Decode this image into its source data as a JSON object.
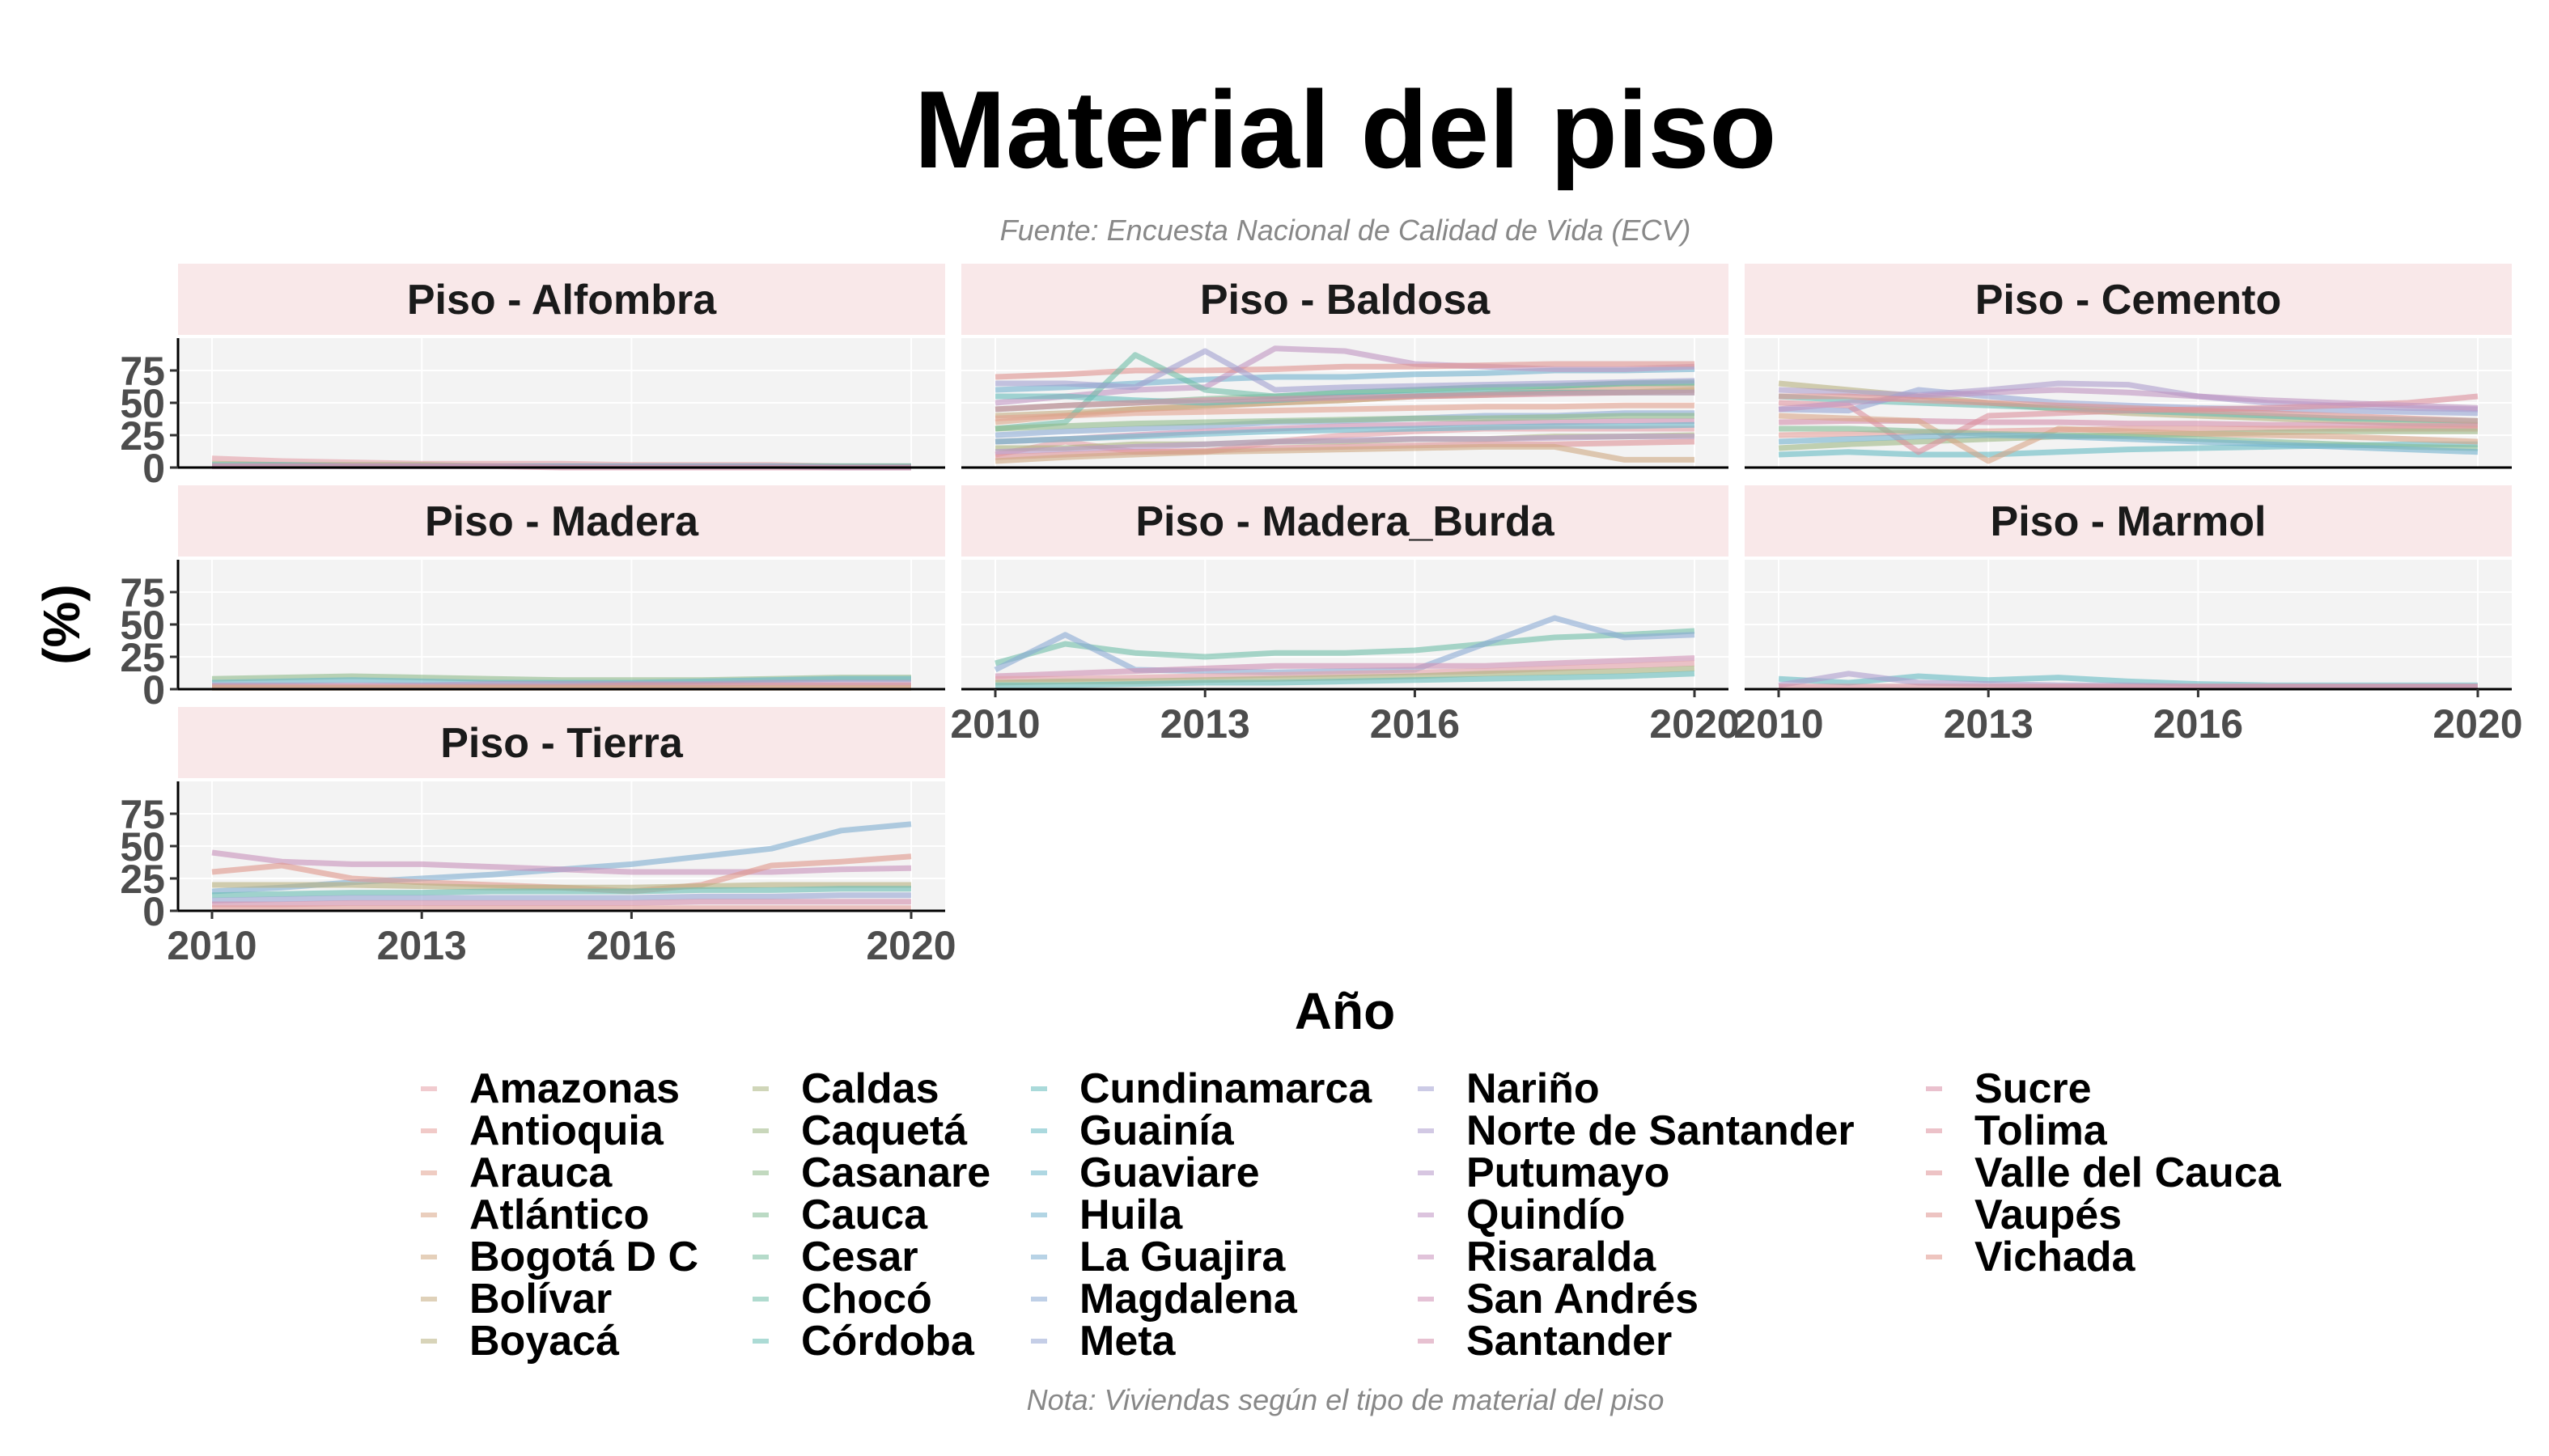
{
  "title": "Material del piso",
  "subtitle": "Fuente: Encuesta Nacional de Calidad de Vida (ECV)",
  "caption": "Nota: Viviendas según el tipo de material del piso",
  "chart_data": {
    "type": "line",
    "title": "Material del piso",
    "xlabel": "Año",
    "ylabel": "(%)",
    "ylim": [
      0,
      100
    ],
    "xlim": [
      2010,
      2020
    ],
    "x_ticks": [
      2010,
      2013,
      2016,
      2020
    ],
    "y_ticks": [
      0,
      25,
      50,
      75
    ],
    "grid": true,
    "legend_position": "bottom",
    "facets": [
      "Piso -  Alfombra",
      "Piso -  Baldosa",
      "Piso -  Cemento",
      "Piso -  Madera",
      "Piso -  Madera_Burda",
      "Piso -  Marmol",
      "Piso -  Tierra"
    ],
    "departments": [
      "Amazonas",
      "Antioquia",
      "Arauca",
      "Atlántico",
      "Bogotá D C",
      "Bolívar",
      "Boyacá",
      "Caldas",
      "Caquetá",
      "Casanare",
      "Cauca",
      "Cesar",
      "Chocó",
      "Córdoba",
      "Cundinamarca",
      "Guainía",
      "Guaviare",
      "Huila",
      "La Guajira",
      "Magdalena",
      "Meta",
      "Nariño",
      "Norte de Santander",
      "Putumayo",
      "Quindío",
      "Risaralda",
      "San Andrés",
      "Santander",
      "Sucre",
      "Tolima",
      "Valle del Cauca",
      "Vaupés",
      "Vichada"
    ],
    "colors": [
      "#e5a0a8",
      "#e59f9a",
      "#e2a28f",
      "#d9a587",
      "#cfa982",
      "#c4ac80",
      "#b8b07f",
      "#aab47f",
      "#9cb783",
      "#8fba8b",
      "#83bc94",
      "#78bd9e",
      "#6fbea8",
      "#68bdb2",
      "#65bcbb",
      "#66bac3",
      "#6bb7ca",
      "#73b3ce",
      "#7eaed1",
      "#8aaad3",
      "#96a5d3",
      "#a2a0d1",
      "#ad9ccd",
      "#b797c8",
      "#c094c2",
      "#c891bb",
      "#cf8fb4",
      "#d48eac",
      "#d88ea5",
      "#dc8f9d",
      "#de9196",
      "#df938f",
      "#e0968a"
    ],
    "series_by_facet": {
      "Piso -  Alfombra": [
        {
          "values": [
            7,
            5,
            4,
            3,
            3,
            3,
            2,
            2,
            2,
            1,
            1
          ]
        },
        {
          "values": [
            3,
            2,
            2,
            2,
            1,
            1,
            1,
            1,
            1,
            1,
            1
          ]
        },
        {
          "values": [
            2,
            2,
            1,
            1,
            1,
            1,
            1,
            1,
            1,
            1,
            1
          ]
        },
        {
          "values": [
            1,
            1,
            1,
            1,
            1,
            1,
            1,
            1,
            1,
            0,
            0
          ]
        },
        {
          "values": [
            1,
            1,
            1,
            1,
            1,
            0,
            0,
            0,
            0,
            0,
            0
          ]
        }
      ],
      "Piso -  Baldosa": [
        {
          "values": [
            35,
            40,
            45,
            47,
            50,
            52,
            55,
            57,
            60,
            62,
            62
          ]
        },
        {
          "values": [
            45,
            48,
            50,
            53,
            55,
            58,
            60,
            62,
            63,
            65,
            65
          ]
        },
        {
          "values": [
            60,
            62,
            65,
            68,
            70,
            70,
            72,
            73,
            75,
            75,
            76
          ]
        },
        {
          "values": [
            50,
            55,
            60,
            62,
            92,
            90,
            80,
            78,
            76,
            76,
            78
          ]
        },
        {
          "values": [
            70,
            72,
            75,
            75,
            76,
            78,
            78,
            79,
            80,
            80,
            80
          ]
        },
        {
          "values": [
            40,
            42,
            45,
            48,
            50,
            52,
            55,
            56,
            58,
            58,
            60
          ]
        },
        {
          "values": [
            30,
            35,
            87,
            60,
            55,
            58,
            60,
            62,
            63,
            65,
            66
          ]
        },
        {
          "values": [
            25,
            28,
            30,
            32,
            35,
            36,
            38,
            40,
            40,
            42,
            42
          ]
        },
        {
          "values": [
            20,
            22,
            25,
            28,
            30,
            32,
            33,
            35,
            35,
            36,
            36
          ]
        },
        {
          "values": [
            10,
            20,
            12,
            12,
            20,
            25,
            28,
            30,
            30,
            30,
            30
          ]
        },
        {
          "values": [
            15,
            15,
            18,
            18,
            20,
            20,
            22,
            22,
            24,
            24,
            25
          ]
        },
        {
          "values": [
            55,
            55,
            52,
            50,
            52,
            55,
            56,
            58,
            58,
            58,
            58
          ]
        },
        {
          "values": [
            65,
            65,
            62,
            90,
            60,
            62,
            63,
            64,
            65,
            66,
            67
          ]
        },
        {
          "values": [
            45,
            48,
            50,
            52,
            53,
            54,
            55,
            56,
            57,
            58,
            58
          ]
        },
        {
          "values": [
            38,
            40,
            42,
            43,
            44,
            45,
            46,
            47,
            47,
            48,
            48
          ]
        },
        {
          "values": [
            30,
            32,
            34,
            35,
            36,
            37,
            38,
            38,
            39,
            40,
            40
          ]
        },
        {
          "values": [
            20,
            22,
            24,
            26,
            28,
            29,
            30,
            31,
            32,
            32,
            33
          ]
        },
        {
          "values": [
            12,
            14,
            16,
            18,
            20,
            21,
            22,
            22,
            23,
            24,
            24
          ]
        },
        {
          "values": [
            8,
            10,
            12,
            13,
            15,
            16,
            17,
            18,
            18,
            19,
            20
          ]
        },
        {
          "values": [
            5,
            8,
            10,
            12,
            13,
            14,
            15,
            16,
            16,
            6,
            6
          ]
        }
      ],
      "Piso -  Cemento": [
        {
          "values": [
            65,
            60,
            55,
            50,
            45,
            42,
            40,
            38,
            36,
            34,
            33
          ]
        },
        {
          "values": [
            55,
            52,
            50,
            48,
            46,
            44,
            42,
            40,
            38,
            37,
            36
          ]
        },
        {
          "values": [
            45,
            44,
            60,
            55,
            50,
            48,
            46,
            45,
            44,
            43,
            42
          ]
        },
        {
          "values": [
            35,
            36,
            36,
            35,
            35,
            34,
            34,
            33,
            33,
            32,
            32
          ]
        },
        {
          "values": [
            25,
            26,
            27,
            28,
            29,
            30,
            30,
            30,
            30,
            30,
            30
          ]
        },
        {
          "values": [
            15,
            18,
            20,
            22,
            24,
            25,
            26,
            27,
            28,
            28,
            28
          ]
        },
        {
          "values": [
            10,
            12,
            10,
            10,
            12,
            14,
            15,
            16,
            17,
            18,
            18
          ]
        },
        {
          "values": [
            60,
            58,
            56,
            60,
            65,
            64,
            55,
            50,
            48,
            46,
            45
          ]
        },
        {
          "values": [
            50,
            48,
            12,
            40,
            42,
            44,
            45,
            46,
            48,
            50,
            55
          ]
        },
        {
          "values": [
            40,
            38,
            36,
            5,
            30,
            28,
            26,
            25,
            24,
            22,
            20
          ]
        },
        {
          "values": [
            30,
            30,
            28,
            26,
            25,
            24,
            22,
            20,
            18,
            16,
            15
          ]
        },
        {
          "values": [
            20,
            22,
            24,
            25,
            24,
            22,
            20,
            18,
            16,
            14,
            12
          ]
        },
        {
          "values": [
            45,
            50,
            55,
            58,
            60,
            58,
            55,
            52,
            50,
            48,
            46
          ]
        },
        {
          "values": [
            55,
            55,
            52,
            50,
            48,
            46,
            44,
            42,
            40,
            38,
            36
          ]
        }
      ],
      "Piso -  Madera": [
        {
          "values": [
            8,
            9,
            10,
            9,
            8,
            7,
            7,
            7,
            8,
            9,
            9
          ]
        },
        {
          "values": [
            5,
            6,
            7,
            6,
            5,
            5,
            5,
            6,
            7,
            8,
            8
          ]
        },
        {
          "values": [
            3,
            3,
            3,
            3,
            4,
            4,
            4,
            4,
            5,
            5,
            5
          ]
        },
        {
          "values": [
            2,
            2,
            2,
            2,
            2,
            2,
            3,
            3,
            3,
            3,
            3
          ]
        },
        {
          "values": [
            1,
            1,
            1,
            1,
            1,
            1,
            1,
            1,
            1,
            1,
            1
          ]
        }
      ],
      "Piso -  Madera_Burda": [
        {
          "values": [
            20,
            35,
            28,
            25,
            28,
            28,
            30,
            35,
            40,
            42,
            45
          ]
        },
        {
          "values": [
            15,
            42,
            15,
            14,
            13,
            14,
            15,
            35,
            55,
            40,
            42
          ]
        },
        {
          "values": [
            10,
            12,
            14,
            16,
            18,
            18,
            18,
            18,
            20,
            22,
            24
          ]
        },
        {
          "values": [
            8,
            8,
            9,
            10,
            11,
            12,
            13,
            14,
            16,
            18,
            20
          ]
        },
        {
          "values": [
            5,
            6,
            6,
            7,
            8,
            9,
            10,
            12,
            13,
            14,
            16
          ]
        },
        {
          "values": [
            3,
            3,
            4,
            5,
            5,
            6,
            7,
            8,
            9,
            10,
            12
          ]
        }
      ],
      "Piso -  Marmol": [
        {
          "values": [
            8,
            5,
            10,
            7,
            9,
            6,
            4,
            3,
            3,
            3,
            3
          ]
        },
        {
          "values": [
            3,
            12,
            5,
            4,
            3,
            3,
            2,
            2,
            2,
            2,
            2
          ]
        },
        {
          "values": [
            2,
            2,
            2,
            2,
            2,
            2,
            2,
            2,
            2,
            2,
            2
          ]
        }
      ],
      "Piso -  Tierra": [
        {
          "values": [
            15,
            18,
            22,
            25,
            28,
            32,
            36,
            42,
            48,
            62,
            67
          ]
        },
        {
          "values": [
            45,
            38,
            36,
            36,
            34,
            32,
            30,
            30,
            30,
            32,
            33
          ]
        },
        {
          "values": [
            30,
            35,
            25,
            22,
            20,
            18,
            15,
            20,
            35,
            38,
            42
          ]
        },
        {
          "values": [
            20,
            20,
            20,
            19,
            18,
            18,
            18,
            19,
            20,
            20,
            20
          ]
        },
        {
          "values": [
            12,
            13,
            14,
            14,
            15,
            15,
            15,
            16,
            16,
            17,
            17
          ]
        },
        {
          "values": [
            8,
            9,
            10,
            10,
            10,
            10,
            10,
            11,
            11,
            12,
            12
          ]
        },
        {
          "values": [
            5,
            5,
            6,
            6,
            6,
            6,
            6,
            7,
            7,
            7,
            7
          ]
        },
        {
          "values": [
            2,
            2,
            2,
            2,
            2,
            2,
            2,
            2,
            2,
            2,
            2
          ]
        }
      ]
    }
  }
}
